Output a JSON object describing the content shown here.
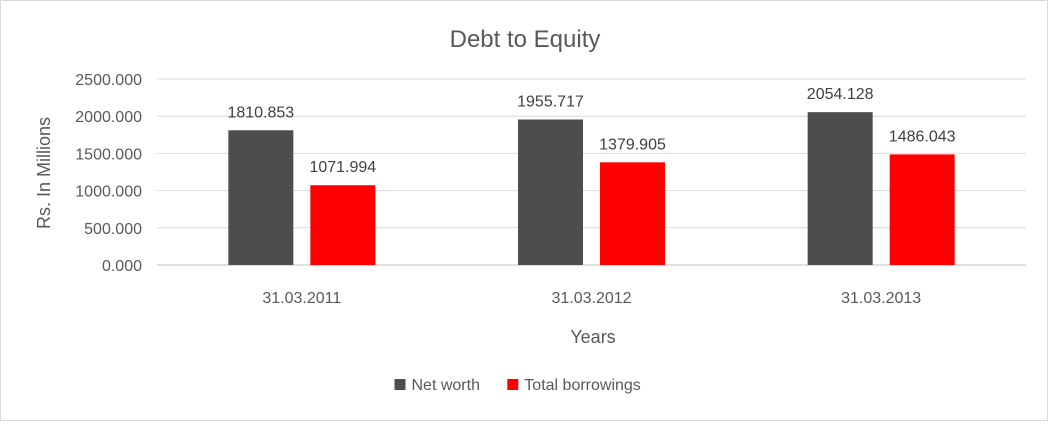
{
  "chart_data": {
    "type": "bar",
    "title": "Debt to Equity",
    "xlabel": "Years",
    "ylabel": "Rs. In Millions",
    "categories": [
      "31.03.2011",
      "31.03.2012",
      "31.03.2013"
    ],
    "series": [
      {
        "name": "Net worth",
        "color": "#4d4d4d",
        "values": [
          1810.853,
          1955.717,
          2054.128
        ],
        "labels": [
          "1810.853",
          "1955.717",
          "2054.128"
        ]
      },
      {
        "name": "Total borrowings",
        "color": "#ff0000",
        "values": [
          1071.994,
          1379.905,
          1486.043
        ],
        "labels": [
          "1071.994",
          "1379.905",
          "1486.043"
        ]
      }
    ],
    "ylim": [
      0,
      2500
    ],
    "yticks": [
      0,
      500,
      1000,
      1500,
      2000,
      2500
    ],
    "ytick_labels": [
      "0.000",
      "500.000",
      "1000.000",
      "1500.000",
      "2000.000",
      "2500.000"
    ],
    "grid": true,
    "legend_position": "bottom"
  }
}
